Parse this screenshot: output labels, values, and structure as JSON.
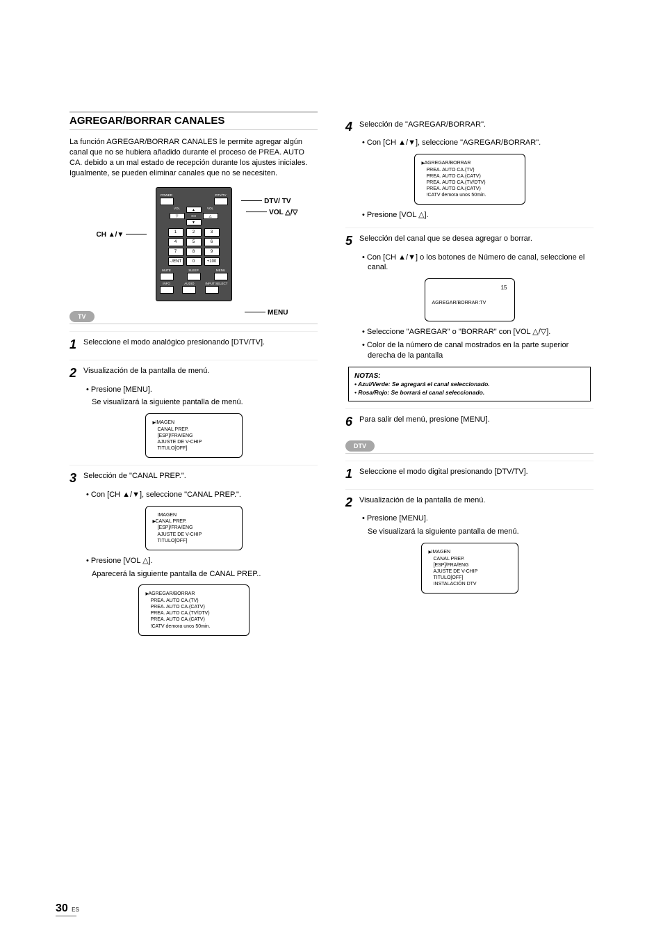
{
  "page": {
    "number": "30",
    "suffix": "ES"
  },
  "title": "AGREGAR/BORRAR CANALES",
  "intro": "La función AGREGAR/BORRAR CANALES le permite agregar algún canal que no se hubiera añadido durante el proceso de PREA. AUTO CA. debido a un mal estado de recepción durante los ajustes iniciales. Igualmente, se pueden eliminar canales que no se necesiten.",
  "remote": {
    "callouts": {
      "left": "CH ▲/▼",
      "right_top": "DTV/ TV",
      "right_mid": "VOL △/▽",
      "right_bot": "MENU"
    },
    "top_labels": {
      "power": "POWER",
      "dtv": "DTV/TV"
    },
    "vol_l": "VOL",
    "vol_r": "VOL",
    "ch": "CH",
    "numbers": [
      "1",
      "2",
      "3",
      "4",
      "5",
      "6",
      "7",
      "8",
      "9",
      "-./ENT",
      "0",
      "+100"
    ],
    "bottom_row": [
      "MUTE",
      "SLEEP",
      "MENU"
    ],
    "bottom_row2": [
      "INFO",
      "AUDIO",
      "INPUT SELECT"
    ]
  },
  "tvpill": "TV",
  "dtvpill": "DTV",
  "tv_steps": {
    "s1": "Seleccione el modo analógico presionando [DTV/TV].",
    "s2": "Visualización de la pantalla de menú.",
    "s2a": "• Presione [MENU].",
    "s2b": "Se visualizará la siguiente pantalla de menú.",
    "screen2": [
      "IMAGEN",
      "CANAL PREP.",
      "[ESP]/FRA/ENG",
      "AJUSTE DE V-CHIP",
      "TITULO[OFF]"
    ],
    "screen2_sel": 0,
    "s3": "Selección de \"CANAL PREP.\".",
    "s3a": "• Con [CH ▲/▼], seleccione \"CANAL PREP.\".",
    "screen3": [
      "IMAGEN",
      "CANAL PREP.",
      "[ESP]/FRA/ENG",
      "AJUSTE DE V-CHIP",
      "TITULO[OFF]"
    ],
    "screen3_sel": 1,
    "s3b": "• Presione [VOL △].",
    "s3c": "Aparecerá la siguiente pantalla de CANAL PREP..",
    "screen3b": [
      "AGREGAR/BORRAR",
      "PREA. AUTO CA.(TV)",
      "PREA. AUTO CA.(CATV)",
      "PREA. AUTO CA.(TV/DTV)",
      "PREA. AUTO CA.(CATV)",
      "!CATV demora unos 50min."
    ],
    "screen3b_sel": 0,
    "s4": "Selección de \"AGREGAR/BORRAR\".",
    "s4a": "• Con [CH ▲/▼], seleccione \"AGREGAR/BORRAR\".",
    "screen4": [
      "AGREGAR/BORRAR",
      "PREA. AUTO CA.(TV)",
      "PREA. AUTO CA.(CATV)",
      "PREA. AUTO CA.(TV/DTV)",
      "PREA. AUTO CA.(CATV)",
      "!CATV demora unos 50min."
    ],
    "screen4_sel": 0,
    "s4b": "• Presione [VOL △].",
    "s5": "Selección del canal que se desea agregar o borrar.",
    "s5a": "• Con [CH ▲/▼] o los botones de Número de canal, seleccione el canal.",
    "screen5_num": "15",
    "screen5_text": "AGREGAR/BORRAR:TV",
    "s5b": "• Seleccione \"AGREGAR\" o \"BORRAR\" con [VOL △/▽].",
    "s5c": "• Color de la número de canal mostrados en la parte superior derecha de la pantalla",
    "note_title": "NOTAS:",
    "note1": "• Azul/Verde: Se agregará el canal seleccionado.",
    "note2": "• Rosa/Rojo: Se borrará el canal seleccionado.",
    "s6": "Para salir del menú, presione [MENU]."
  },
  "dtv_steps": {
    "s1": "Seleccione el modo digital presionando [DTV/TV].",
    "s2": "Visualización de la pantalla de menú.",
    "s2a": "• Presione [MENU].",
    "s2b": "Se visualizará la siguiente pantalla de menú.",
    "screen2": [
      "IMAGEN",
      "CANAL PREP.",
      "[ESP]/FRA/ENG",
      "AJUSTE DE V-CHIP",
      "TITULO[OFF]",
      "INSTALACIÓN DTV"
    ],
    "screen2_sel": 0
  }
}
